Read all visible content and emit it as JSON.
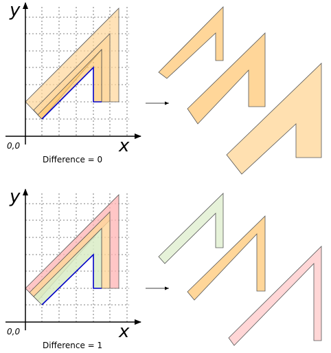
{
  "panels": [
    {
      "id": "top",
      "axis_y_label": "y",
      "axis_x_label": "x",
      "origin_label": "0,0",
      "caption": "Difference = 0",
      "colors": {
        "small": "#ffd699",
        "medium": "#ffd699",
        "large": "#ffd699"
      }
    },
    {
      "id": "bottom",
      "axis_y_label": "y",
      "axis_x_label": "x",
      "origin_label": "0,0",
      "caption": "Difference = 1",
      "colors": {
        "small": "#e6f2d9",
        "medium": "#ffd699",
        "large": "#ffd6d6"
      }
    }
  ],
  "colors": {
    "path_line": "#0000c8",
    "axis": "#000000",
    "grid": "#555555",
    "shape_stroke": "#555555"
  }
}
